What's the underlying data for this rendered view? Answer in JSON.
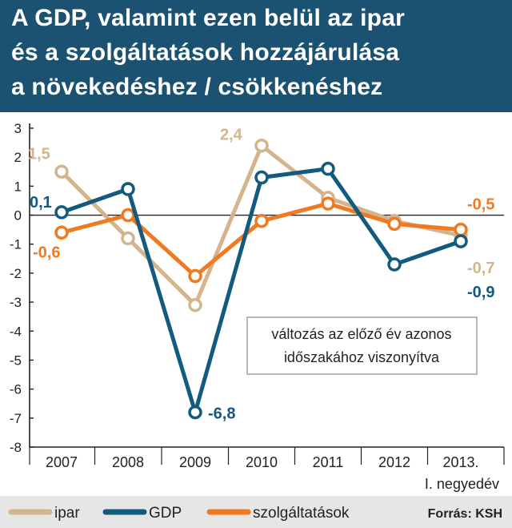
{
  "title": {
    "line1": "A GDP, valamint ezen belül az ipar",
    "line2": "és a szolgáltatások hozzájárulása",
    "line3": "a növekedéshez / csökkenéshez"
  },
  "chart_data": {
    "type": "line",
    "categories": [
      "2007",
      "2008",
      "2009",
      "2010",
      "2011",
      "2012",
      "2013."
    ],
    "category_sublabel": "I. negyedév",
    "ylim": [
      -8,
      3
    ],
    "yticks": [
      "3",
      "2",
      "1",
      "0",
      "-1",
      "-2",
      "-3",
      "-4",
      "-5",
      "-6",
      "-7",
      "-8"
    ],
    "series": [
      {
        "name": "ipar",
        "color": "#d4b48c",
        "values": [
          1.5,
          -0.8,
          -3.1,
          2.4,
          0.6,
          -0.2,
          -0.7
        ]
      },
      {
        "name": "szolgáltatások",
        "color": "#f07a22",
        "values": [
          -0.6,
          0.0,
          -2.1,
          -0.2,
          0.4,
          -0.3,
          -0.5
        ]
      },
      {
        "name": "GDP",
        "color": "#135a7f",
        "values": [
          0.1,
          0.9,
          -6.8,
          1.3,
          1.6,
          -1.7,
          -0.9
        ]
      }
    ],
    "data_labels": [
      {
        "text": "1,5",
        "series": "ipar",
        "index": 0
      },
      {
        "text": "0,1",
        "series": "GDP",
        "index": 0
      },
      {
        "text": "-0,6",
        "series": "szolgáltatások",
        "index": 0
      },
      {
        "text": "2,4",
        "series": "ipar",
        "index": 3
      },
      {
        "text": "-6,8",
        "series": "GDP",
        "index": 2
      },
      {
        "text": "-0,5",
        "series": "szolgáltatások",
        "index": 6
      },
      {
        "text": "-0,7",
        "series": "ipar",
        "index": 6
      },
      {
        "text": "-0,9",
        "series": "GDP",
        "index": 6
      }
    ],
    "annotation": {
      "line1": "változás az előző év azonos",
      "line2": "időszakához viszonyítva"
    },
    "legend": {
      "placement": "bottom",
      "entries": [
        "ipar",
        "GDP",
        "szolgáltatások"
      ]
    },
    "source": "Forrás: KSH",
    "grid": false
  }
}
